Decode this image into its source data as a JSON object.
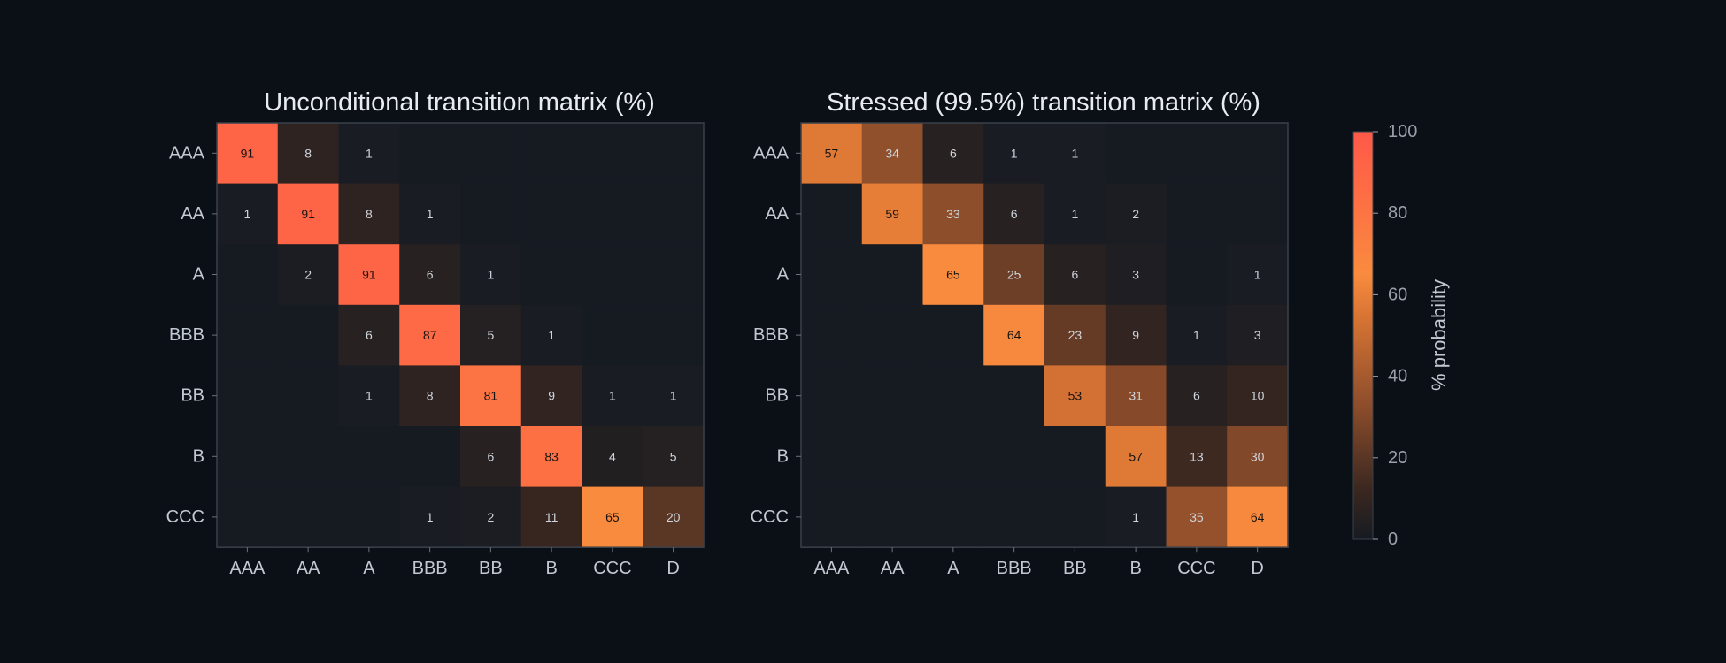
{
  "chart_data": [
    {
      "type": "heatmap",
      "title": "Unconditional transition matrix (%)",
      "rows": [
        "AAA",
        "AA",
        "A",
        "BBB",
        "BB",
        "B",
        "CCC"
      ],
      "columns": [
        "AAA",
        "AA",
        "A",
        "BBB",
        "BB",
        "B",
        "CCC",
        "D"
      ],
      "values": [
        [
          91,
          8,
          1,
          0,
          0,
          0,
          0,
          0
        ],
        [
          1,
          91,
          8,
          1,
          0,
          0,
          0,
          0
        ],
        [
          0,
          2,
          91,
          6,
          1,
          0,
          0,
          0
        ],
        [
          0,
          0,
          6,
          87,
          5,
          1,
          0,
          0
        ],
        [
          0,
          0,
          1,
          8,
          81,
          9,
          1,
          1
        ],
        [
          0,
          0,
          0,
          0,
          6,
          83,
          4,
          5
        ],
        [
          0,
          0,
          0,
          1,
          2,
          11,
          65,
          20
        ]
      ],
      "range": [
        0,
        100
      ]
    },
    {
      "type": "heatmap",
      "title": "Stressed (99.5%) transition matrix (%)",
      "rows": [
        "AAA",
        "AA",
        "A",
        "BBB",
        "BB",
        "B",
        "CCC"
      ],
      "columns": [
        "AAA",
        "AA",
        "A",
        "BBB",
        "BB",
        "B",
        "CCC",
        "D"
      ],
      "values": [
        [
          57,
          34,
          6,
          1,
          1,
          0,
          0,
          0
        ],
        [
          0,
          59,
          33,
          6,
          1,
          2,
          0,
          0
        ],
        [
          0,
          0,
          65,
          25,
          6,
          3,
          0,
          1
        ],
        [
          0,
          0,
          0,
          64,
          23,
          9,
          1,
          3
        ],
        [
          0,
          0,
          0,
          0,
          53,
          31,
          6,
          10
        ],
        [
          0,
          0,
          0,
          0,
          0,
          57,
          13,
          30
        ],
        [
          0,
          0,
          0,
          0,
          0,
          1,
          35,
          64
        ]
      ],
      "range": [
        0,
        100
      ]
    }
  ],
  "colorbar": {
    "label": "% probability",
    "ticks": [
      0,
      20,
      40,
      60,
      80,
      100
    ],
    "range": [
      0,
      100
    ]
  },
  "colors": {
    "background": "#0b0f16",
    "cell_base": "#161b22",
    "cmap_stops": [
      "#161b22",
      "#3a2720",
      "#8a4c2b",
      "#d97534",
      "#f98b3e",
      "#fd6d45",
      "#fe5948"
    ],
    "frame": "#3a414b",
    "text_light": "#cfd5dd",
    "text_dark": "#1a1410"
  }
}
